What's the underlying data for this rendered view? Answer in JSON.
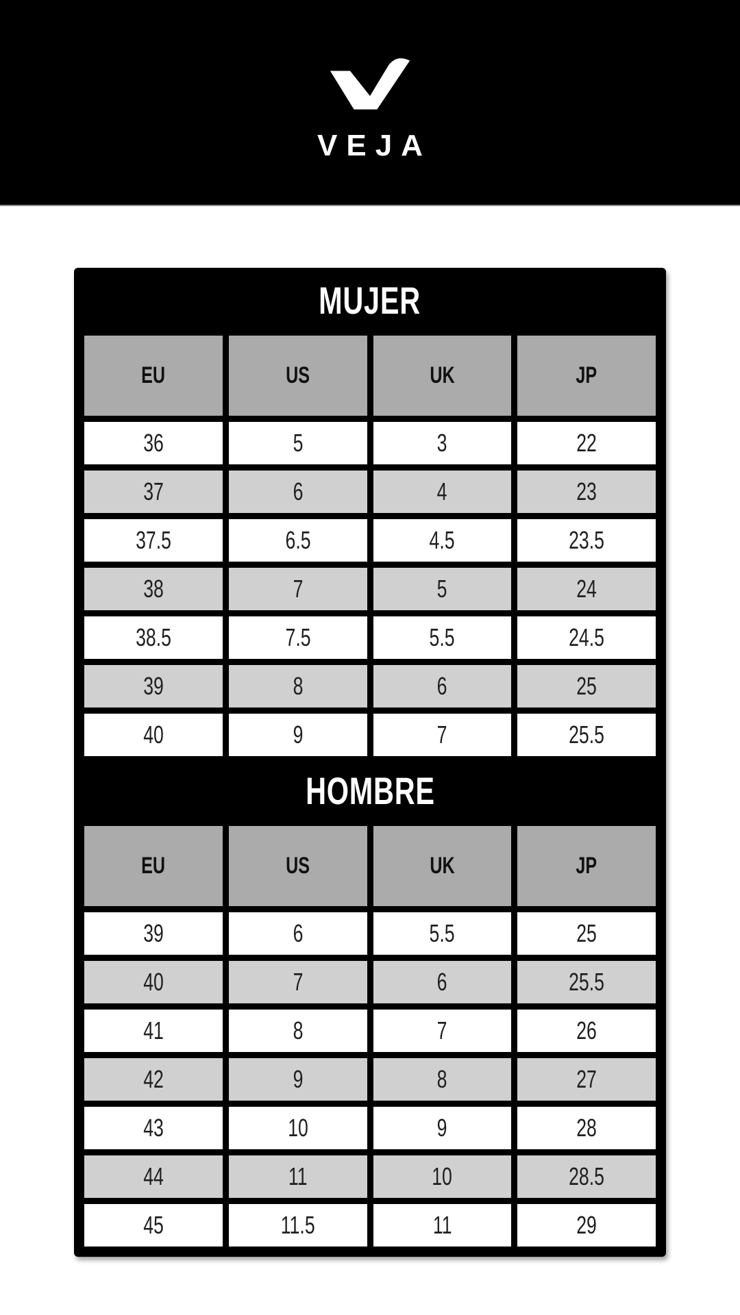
{
  "brand": {
    "wordmark": "VEJA",
    "logo_icon": "veja-v-logo-icon",
    "header_bg": "#000000",
    "logo_color": "#ffffff"
  },
  "colors": {
    "frame_black": "#000000",
    "column_header_bg": "#ababab",
    "row_white": "#ffffff",
    "row_alt_gray": "#d0d0d0",
    "title_text": "#ffffff",
    "cell_text": "#1f1f1f",
    "header_divider": "#8f8f8f"
  },
  "size_chart": {
    "sections": [
      {
        "title": "MUJER",
        "columns": [
          "EU",
          "US",
          "UK",
          "JP"
        ],
        "rows": [
          [
            "36",
            "5",
            "3",
            "22"
          ],
          [
            "37",
            "6",
            "4",
            "23"
          ],
          [
            "37.5",
            "6.5",
            "4.5",
            "23.5"
          ],
          [
            "38",
            "7",
            "5",
            "24"
          ],
          [
            "38.5",
            "7.5",
            "5.5",
            "24.5"
          ],
          [
            "39",
            "8",
            "6",
            "25"
          ],
          [
            "40",
            "9",
            "7",
            "25.5"
          ]
        ]
      },
      {
        "title": "HOMBRE",
        "columns": [
          "EU",
          "US",
          "UK",
          "JP"
        ],
        "rows": [
          [
            "39",
            "6",
            "5.5",
            "25"
          ],
          [
            "40",
            "7",
            "6",
            "25.5"
          ],
          [
            "41",
            "8",
            "7",
            "26"
          ],
          [
            "42",
            "9",
            "8",
            "27"
          ],
          [
            "43",
            "10",
            "9",
            "28"
          ],
          [
            "44",
            "11",
            "10",
            "28.5"
          ],
          [
            "45",
            "11.5",
            "11",
            "29"
          ]
        ]
      }
    ]
  }
}
